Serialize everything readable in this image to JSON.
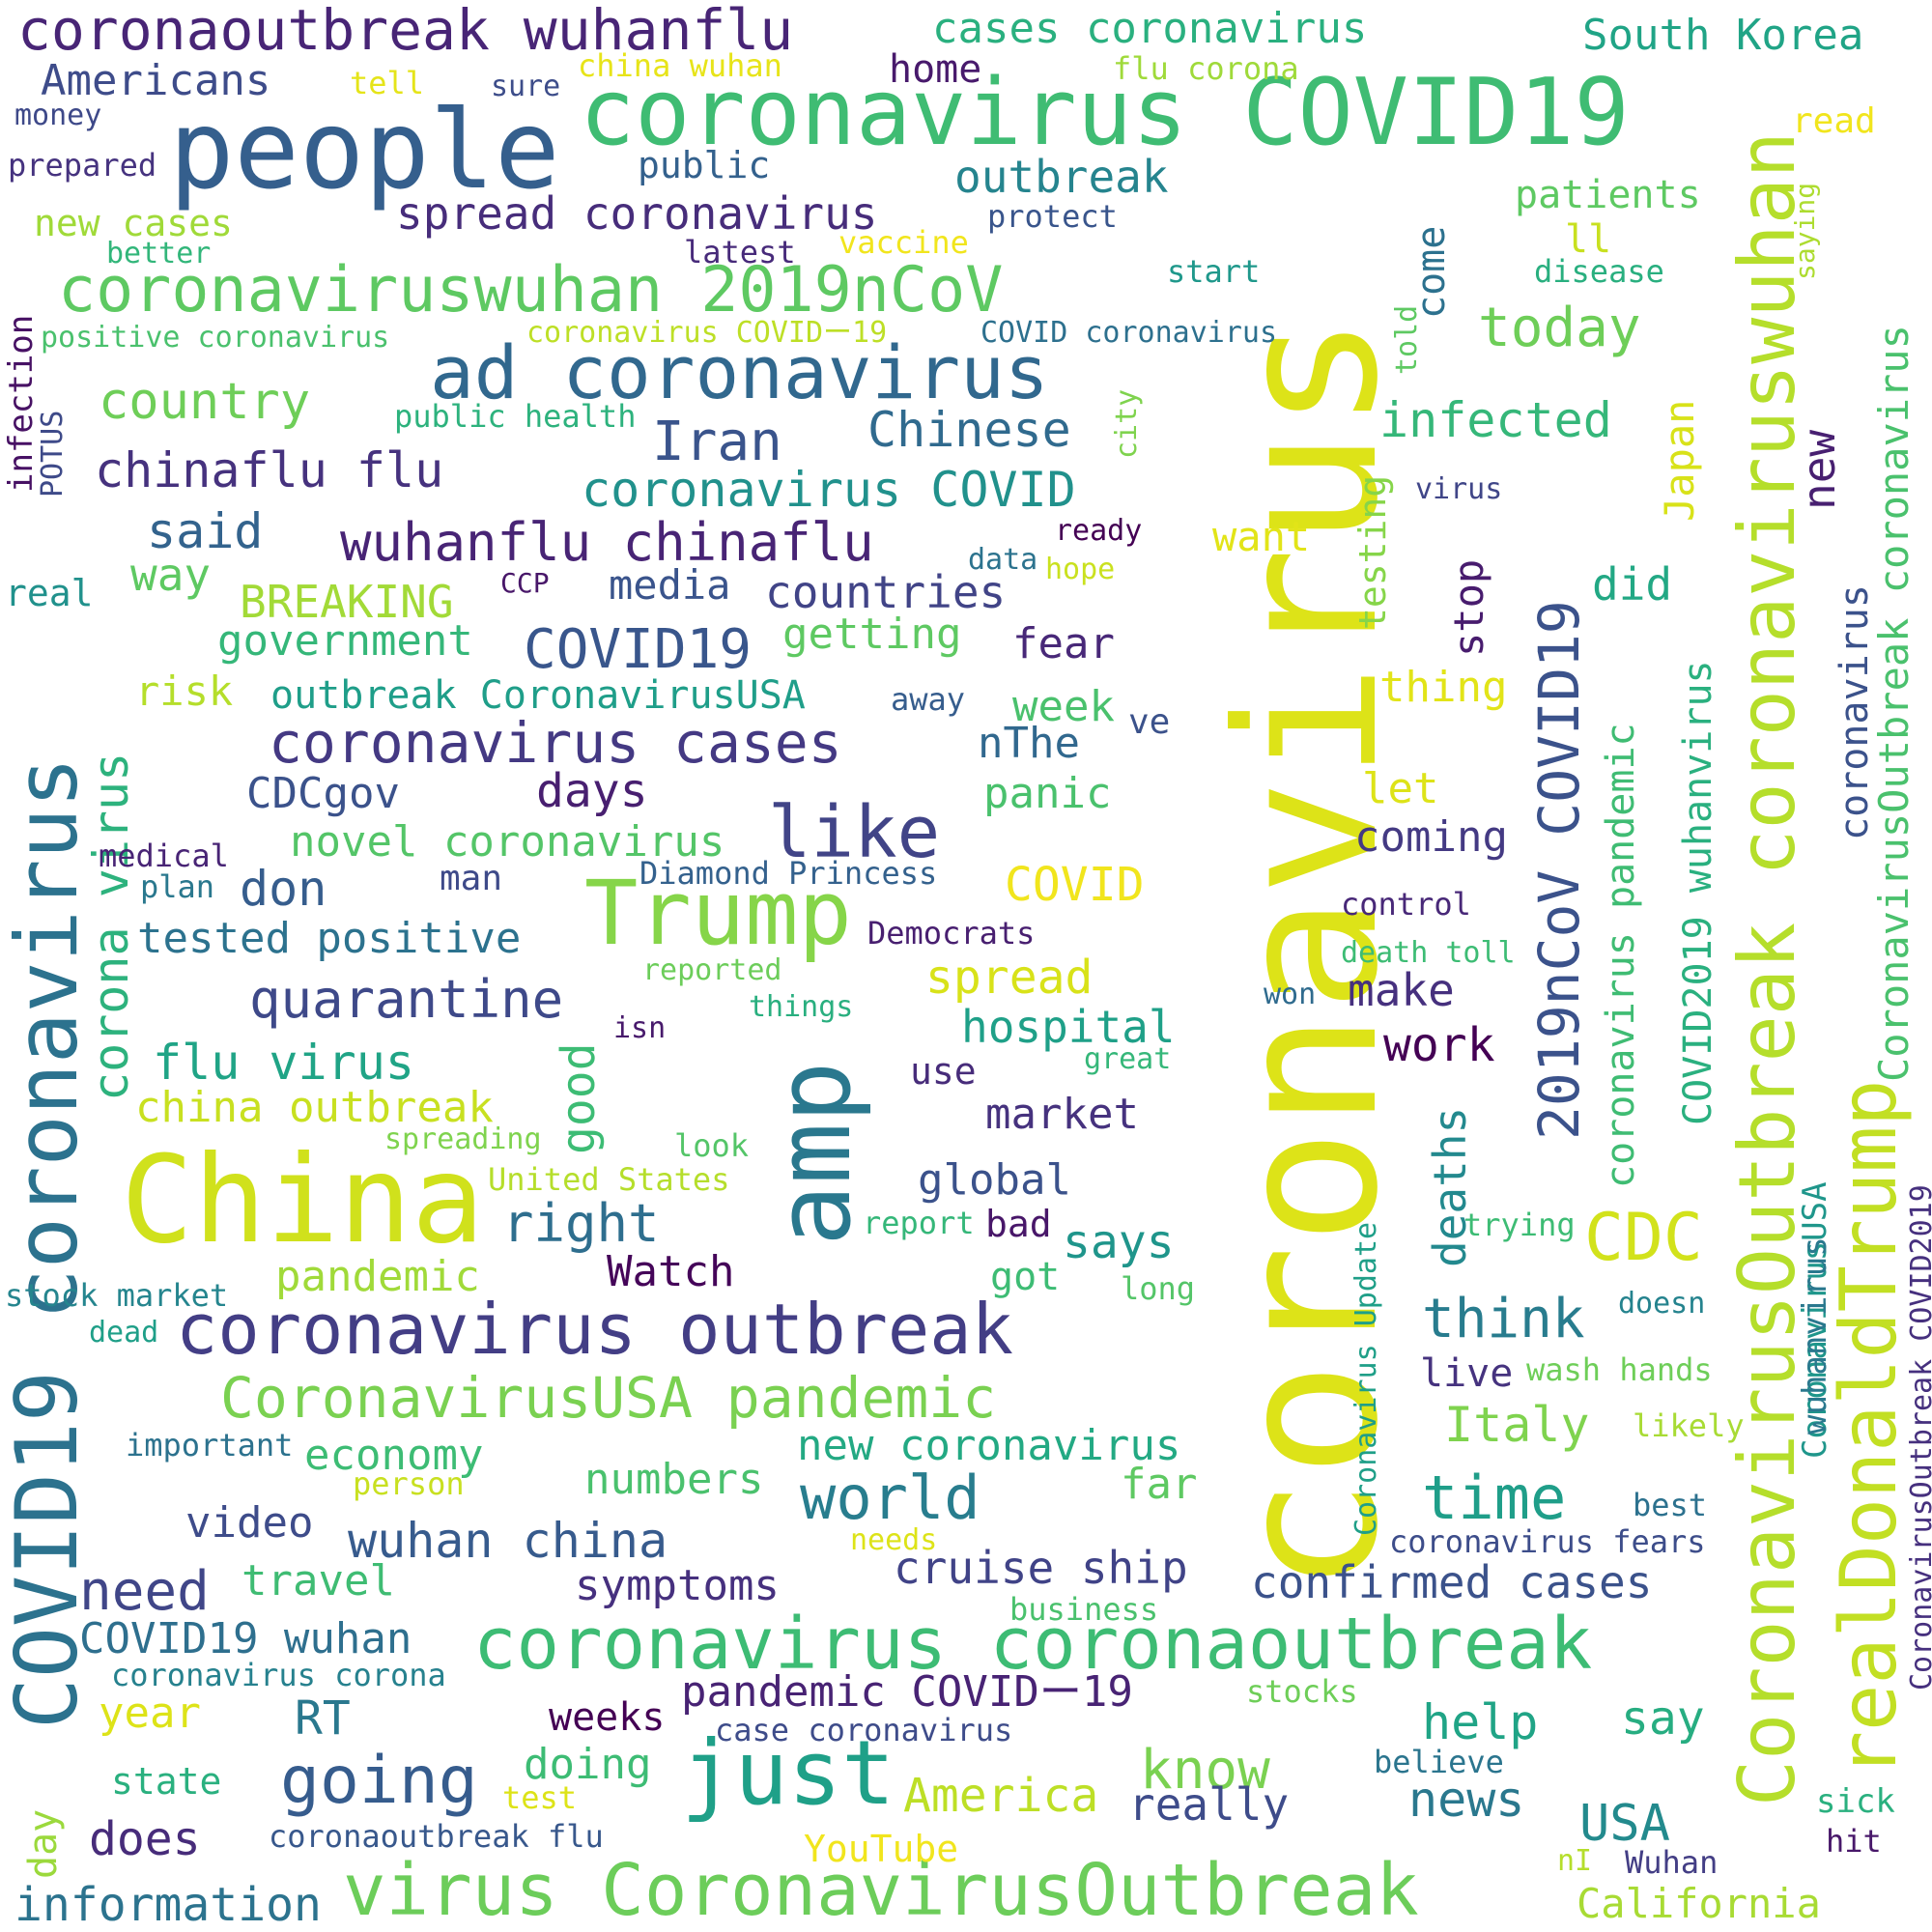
{
  "words": [
    {
      "text": "coronavirus",
      "color": "#dde318",
      "orientation": "vertical"
    },
    {
      "text": "China",
      "color": "#d0e11c"
    },
    {
      "text": "people",
      "color": "#355f8d"
    },
    {
      "text": "coronavirus COVID19",
      "color": "#3fbc73"
    },
    {
      "text": "amp",
      "color": "#2a788e"
    },
    {
      "text": "CoronavirusOutbreak coronaviruswuhan",
      "color": "#b5de2b",
      "orientation": "vertical"
    },
    {
      "text": "COVID19 coronavirus",
      "color": "#2c728e",
      "orientation": "vertical"
    },
    {
      "text": "realDonaldTrump",
      "color": "#c2df23",
      "orientation": "vertical"
    },
    {
      "text": "coronavirus coronaoutbreak",
      "color": "#3dbc74"
    },
    {
      "text": "virus CoronavirusOutbreak",
      "color": "#6ccd5a"
    },
    {
      "text": "Trump",
      "color": "#86d549"
    },
    {
      "text": "just",
      "color": "#1fa088"
    },
    {
      "text": "coronavirus outbreak",
      "color": "#433e85"
    },
    {
      "text": "ad coronavirus",
      "color": "#31688e"
    },
    {
      "text": "coronaviruswuhan 2019nCoV",
      "color": "#5ec962"
    },
    {
      "text": "2019nCoV COVID19",
      "color": "#3b528b",
      "orientation": "vertical"
    },
    {
      "text": "coronaoutbreak wuhanflu",
      "color": "#482576"
    },
    {
      "text": "CoronavirusUSA pandemic",
      "color": "#7ad151"
    },
    {
      "text": "coronavirus cases",
      "color": "#443983"
    },
    {
      "text": "like",
      "color": "#414487"
    },
    {
      "text": "going",
      "color": "#365c8d"
    },
    {
      "text": "world",
      "color": "#287d8e"
    },
    {
      "text": "wuhanflu chinaflu",
      "color": "#482475"
    },
    {
      "text": "need",
      "color": "#404688"
    },
    {
      "text": "time",
      "color": "#1f9e89"
    },
    {
      "text": "quarantine",
      "color": "#3e4989"
    },
    {
      "text": "think",
      "color": "#287c8e"
    },
    {
      "text": "CDC",
      "color": "#d2e21b"
    },
    {
      "text": "Iran",
      "color": "#3a548c"
    },
    {
      "text": "today",
      "color": "#6ece58"
    },
    {
      "text": "chinaflu flu",
      "color": "#46327e"
    },
    {
      "text": "Chinese",
      "color": "#306a8e"
    },
    {
      "text": "COVID19",
      "color": "#39568c"
    },
    {
      "text": "infected",
      "color": "#35b779"
    },
    {
      "text": "coronavirus COVID",
      "color": "#21918c"
    },
    {
      "text": "CoronavirusOutbreak coronavirus",
      "color": "#4ac16d",
      "orientation": "vertical"
    },
    {
      "text": "country",
      "color": "#6ece58"
    },
    {
      "text": "spread coronavirus",
      "color": "#472d7b"
    },
    {
      "text": "corona virus",
      "color": "#2db27d",
      "orientation": "vertical"
    },
    {
      "text": "know",
      "color": "#7ad151"
    },
    {
      "text": "spread",
      "color": "#d8e219"
    },
    {
      "text": "Italy",
      "color": "#7fd34e"
    },
    {
      "text": "flu virus",
      "color": "#20a486"
    },
    {
      "text": "outbreak",
      "color": "#25848e"
    },
    {
      "text": "coronavirus pandemic",
      "color": "#3fbc73",
      "orientation": "vertical"
    },
    {
      "text": "COVID2019 wuhanvirus",
      "color": "#2ab07f",
      "orientation": "vertical"
    },
    {
      "text": "Japan",
      "color": "#d8e219",
      "orientation": "vertical"
    },
    {
      "text": "deaths",
      "color": "#23898e",
      "orientation": "vertical"
    },
    {
      "text": "good",
      "color": "#3dbc74",
      "orientation": "vertical"
    },
    {
      "text": "hospital",
      "color": "#1fa088"
    },
    {
      "text": "right",
      "color": "#2e6e8e"
    },
    {
      "text": "wuhan china",
      "color": "#375b8d"
    },
    {
      "text": "cruise ship",
      "color": "#404387"
    },
    {
      "text": "confirmed cases",
      "color": "#3b528b"
    },
    {
      "text": "days",
      "color": "#481f70"
    },
    {
      "text": "said",
      "color": "#33638d"
    },
    {
      "text": "don",
      "color": "#365d8d"
    },
    {
      "text": "says",
      "color": "#1f958b"
    },
    {
      "text": "say",
      "color": "#27ad81"
    },
    {
      "text": "help",
      "color": "#20a486"
    },
    {
      "text": "news",
      "color": "#2a788e"
    },
    {
      "text": "does",
      "color": "#472c7a"
    },
    {
      "text": "America",
      "color": "#bddf26"
    },
    {
      "text": "really",
      "color": "#3e4c8a"
    },
    {
      "text": "USA",
      "color": "#238a8d"
    },
    {
      "text": "information",
      "color": "#2c738e"
    },
    {
      "text": "California",
      "color": "#a8db34"
    },
    {
      "text": "work",
      "color": "#440154"
    },
    {
      "text": "make",
      "color": "#46307e"
    },
    {
      "text": "coming",
      "color": "#443a83"
    },
    {
      "text": "stop",
      "color": "#481c6e",
      "orientation": "vertical"
    },
    {
      "text": "did",
      "color": "#22a884"
    },
    {
      "text": "new",
      "color": "#482071",
      "orientation": "vertical"
    },
    {
      "text": "CoronavirusUSA",
      "color": "#1f968b",
      "orientation": "vertical"
    },
    {
      "text": "wuhanvirus",
      "color": "#2a788e",
      "orientation": "vertical"
    },
    {
      "text": "coronavirus",
      "color": "#3b528b",
      "orientation": "vertical"
    },
    {
      "text": "Coronavirus Update",
      "color": "#1f9f88",
      "orientation": "vertical"
    },
    {
      "text": "CoronavirusOutbreak COVID2019",
      "color": "#46307e",
      "orientation": "vertical"
    },
    {
      "text": "testing",
      "color": "#86d549",
      "orientation": "vertical"
    },
    {
      "text": "come",
      "color": "#2c718e",
      "orientation": "vertical"
    },
    {
      "text": "told",
      "color": "#5ec962",
      "orientation": "vertical"
    },
    {
      "text": "city",
      "color": "#7fd34e",
      "orientation": "vertical"
    },
    {
      "text": "infection",
      "color": "#471164",
      "orientation": "vertical"
    },
    {
      "text": "POTUS",
      "color": "#3e4a89",
      "orientation": "vertical"
    },
    {
      "text": "day",
      "color": "#9bd93c",
      "orientation": "vertical"
    },
    {
      "text": "saying",
      "color": "#addc30",
      "orientation": "vertical"
    },
    {
      "text": "cases coronavirus",
      "color": "#2ab07f"
    },
    {
      "text": "South Korea",
      "color": "#20a486"
    },
    {
      "text": "Americans",
      "color": "#3e4c8a"
    },
    {
      "text": "home",
      "color": "#481a6c"
    },
    {
      "text": "flu corona",
      "color": "#9fda3a"
    },
    {
      "text": "china wuhan",
      "color": "#e7e419"
    },
    {
      "text": "tell",
      "color": "#e5e419"
    },
    {
      "text": "sure",
      "color": "#3d4d8a"
    },
    {
      "text": "money",
      "color": "#3e4989"
    },
    {
      "text": "prepared",
      "color": "#46337f"
    },
    {
      "text": "public",
      "color": "#34618d"
    },
    {
      "text": "new cases",
      "color": "#a0da39"
    },
    {
      "text": "better",
      "color": "#32b67a"
    },
    {
      "text": "vaccine",
      "color": "#f1e51d"
    },
    {
      "text": "latest",
      "color": "#472a7a"
    },
    {
      "text": "protect",
      "color": "#39558c"
    },
    {
      "text": "patients",
      "color": "#5ec962"
    },
    {
      "text": "ll",
      "color": "#c8e020"
    },
    {
      "text": "read",
      "color": "#f1e51d"
    },
    {
      "text": "start",
      "color": "#1f988b"
    },
    {
      "text": "disease",
      "color": "#29af7f"
    },
    {
      "text": "positive coronavirus",
      "color": "#4ac16d"
    },
    {
      "text": "coronavirus COVIDー19",
      "color": "#bddf26"
    },
    {
      "text": "COVID coronavirus",
      "color": "#2d708e"
    },
    {
      "text": "public health",
      "color": "#2db27d"
    },
    {
      "text": "virus",
      "color": "#404688"
    },
    {
      "text": "ready",
      "color": "#440154"
    },
    {
      "text": "real",
      "color": "#21918c"
    },
    {
      "text": "way",
      "color": "#5ec962"
    },
    {
      "text": "BREAKING",
      "color": "#a2da37"
    },
    {
      "text": "CCP",
      "color": "#481769"
    },
    {
      "text": "media",
      "color": "#3a548c"
    },
    {
      "text": "countries",
      "color": "#414487"
    },
    {
      "text": "data",
      "color": "#2c738e"
    },
    {
      "text": "hope",
      "color": "#cae11f"
    },
    {
      "text": "want",
      "color": "#e2e418"
    },
    {
      "text": "government",
      "color": "#35b779"
    },
    {
      "text": "getting",
      "color": "#5ec962"
    },
    {
      "text": "fear",
      "color": "#482878"
    },
    {
      "text": "thing",
      "color": "#e2e418"
    },
    {
      "text": "risk",
      "color": "#b5de2b"
    },
    {
      "text": "outbreak CoronavirusUSA",
      "color": "#1f9e89"
    },
    {
      "text": "away",
      "color": "#365d8d"
    },
    {
      "text": "week",
      "color": "#4ac16d"
    },
    {
      "text": "ve",
      "color": "#3b528b"
    },
    {
      "text": "nThe",
      "color": "#31688e"
    },
    {
      "text": "CDCgov",
      "color": "#3b528b"
    },
    {
      "text": "let",
      "color": "#dde318"
    },
    {
      "text": "panic",
      "color": "#4ac16d"
    },
    {
      "text": "novel coronavirus",
      "color": "#54c568"
    },
    {
      "text": "medical",
      "color": "#482475"
    },
    {
      "text": "plan",
      "color": "#2a788e"
    },
    {
      "text": "man",
      "color": "#3e4a89"
    },
    {
      "text": "Diamond Princess",
      "color": "#34618d"
    },
    {
      "text": "COVID",
      "color": "#f1e51d"
    },
    {
      "text": "control",
      "color": "#482878"
    },
    {
      "text": "tested positive",
      "color": "#2c728e"
    },
    {
      "text": "Democrats",
      "color": "#481f70"
    },
    {
      "text": "death toll",
      "color": "#3dbc74"
    },
    {
      "text": "reported",
      "color": "#6ccd5a"
    },
    {
      "text": "things",
      "color": "#29af7f"
    },
    {
      "text": "isn",
      "color": "#481a6c"
    },
    {
      "text": "won",
      "color": "#2f6b8e"
    },
    {
      "text": "great",
      "color": "#35b779"
    },
    {
      "text": "use",
      "color": "#472c7a"
    },
    {
      "text": "china outbreak",
      "color": "#c8e020"
    },
    {
      "text": "market",
      "color": "#46327e"
    },
    {
      "text": "spreading",
      "color": "#7fd34e"
    },
    {
      "text": "look",
      "color": "#54c568"
    },
    {
      "text": "global",
      "color": "#3b528b"
    },
    {
      "text": "United States",
      "color": "#b5de2b"
    },
    {
      "text": "report",
      "color": "#35b779"
    },
    {
      "text": "bad",
      "color": "#481769"
    },
    {
      "text": "trying",
      "color": "#3dbc74"
    },
    {
      "text": "pandemic",
      "color": "#a0da39"
    },
    {
      "text": "Watch",
      "color": "#450559"
    },
    {
      "text": "got",
      "color": "#3dbc74"
    },
    {
      "text": "long",
      "color": "#54c568"
    },
    {
      "text": "stock market",
      "color": "#25858e"
    },
    {
      "text": "dead",
      "color": "#1f9f88"
    },
    {
      "text": "doesn",
      "color": "#25838e"
    },
    {
      "text": "live",
      "color": "#46337f"
    },
    {
      "text": "wash hands",
      "color": "#6ece58"
    },
    {
      "text": "important",
      "color": "#2c728e"
    },
    {
      "text": "economy",
      "color": "#3dbc74"
    },
    {
      "text": "person",
      "color": "#c8e020"
    },
    {
      "text": "numbers",
      "color": "#4ac16d"
    },
    {
      "text": "new coronavirus",
      "color": "#23a983"
    },
    {
      "text": "far",
      "color": "#5ec962"
    },
    {
      "text": "likely",
      "color": "#a8db34"
    },
    {
      "text": "video",
      "color": "#3e4c8a"
    },
    {
      "text": "best",
      "color": "#2c718e"
    },
    {
      "text": "needs",
      "color": "#dde318"
    },
    {
      "text": "coronavirus fears",
      "color": "#3d4d8a"
    },
    {
      "text": "travel",
      "color": "#3fbc73"
    },
    {
      "text": "symptoms",
      "color": "#46307e"
    },
    {
      "text": "business",
      "color": "#4ac16d"
    },
    {
      "text": "COVID19 wuhan",
      "color": "#2e6f8e"
    },
    {
      "text": "coronavirus corona",
      "color": "#26818e"
    },
    {
      "text": "year",
      "color": "#dde318"
    },
    {
      "text": "RT",
      "color": "#2a788e"
    },
    {
      "text": "pandemic COVIDー19",
      "color": "#482374"
    },
    {
      "text": "weeks",
      "color": "#440154"
    },
    {
      "text": "case coronavirus",
      "color": "#3e4c8a"
    },
    {
      "text": "stocks",
      "color": "#6ece58"
    },
    {
      "text": "believe",
      "color": "#2b758e"
    },
    {
      "text": "doing",
      "color": "#3dbc74"
    },
    {
      "text": "test",
      "color": "#dde318"
    },
    {
      "text": "state",
      "color": "#2ab07f"
    },
    {
      "text": "sick",
      "color": "#2ab07f"
    },
    {
      "text": "hit",
      "color": "#48186a"
    },
    {
      "text": "coronaoutbreak flu",
      "color": "#38588c"
    },
    {
      "text": "YouTube",
      "color": "#f1e51d"
    },
    {
      "text": "nI",
      "color": "#b5de2b"
    },
    {
      "text": "Wuhan",
      "color": "#433e85"
    }
  ]
}
